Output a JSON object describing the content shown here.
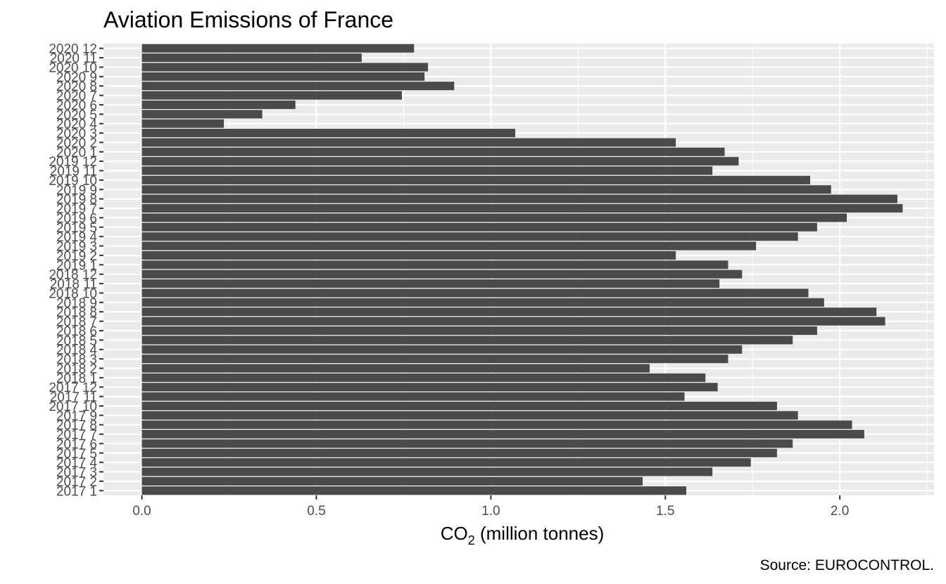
{
  "chart_data": {
    "type": "bar",
    "orientation": "horizontal",
    "title": "Aviation Emissions of France",
    "xlabel": {
      "main": "CO",
      "subscript": "2",
      "suffix": " (million tonnes)"
    },
    "ylabel": "",
    "caption": "Source: EUROCONTROL.",
    "xlim": [
      -0.11,
      2.27
    ],
    "xticks": [
      0.0,
      0.5,
      1.0,
      1.5,
      2.0
    ],
    "xtick_labels": [
      "0.0",
      "0.5",
      "1.0",
      "1.5",
      "2.0"
    ],
    "grid": true,
    "bar_color": "#4a4a4a",
    "panel_color": "#ebebeb",
    "grid_color": "#ffffff",
    "categories": [
      "2017  1",
      "2017  2",
      "2017  3",
      "2017  4",
      "2017  5",
      "2017  6",
      "2017  7",
      "2017  8",
      "2017  9",
      "2017 10",
      "2017 11",
      "2017 12",
      "2018  1",
      "2018  2",
      "2018  3",
      "2018  4",
      "2018  5",
      "2018  6",
      "2018  7",
      "2018  8",
      "2018  9",
      "2018 10",
      "2018 11",
      "2018 12",
      "2019  1",
      "2019  2",
      "2019  3",
      "2019  4",
      "2019  5",
      "2019  6",
      "2019  7",
      "2019  8",
      "2019  9",
      "2019 10",
      "2019 11",
      "2019 12",
      "2020  1",
      "2020  2",
      "2020  3",
      "2020  4",
      "2020  5",
      "2020  6",
      "2020  7",
      "2020  8",
      "2020  9",
      "2020 10",
      "2020 11",
      "2020 12"
    ],
    "values": [
      1.56,
      1.435,
      1.635,
      1.745,
      1.82,
      1.865,
      2.07,
      2.035,
      1.88,
      1.82,
      1.555,
      1.65,
      1.615,
      1.455,
      1.68,
      1.72,
      1.865,
      1.935,
      2.13,
      2.105,
      1.955,
      1.91,
      1.655,
      1.72,
      1.68,
      1.53,
      1.76,
      1.88,
      1.935,
      2.02,
      2.18,
      2.165,
      1.975,
      1.915,
      1.635,
      1.71,
      1.67,
      1.53,
      1.07,
      0.235,
      0.345,
      0.44,
      0.745,
      0.895,
      0.81,
      0.82,
      0.63,
      0.78
    ]
  }
}
